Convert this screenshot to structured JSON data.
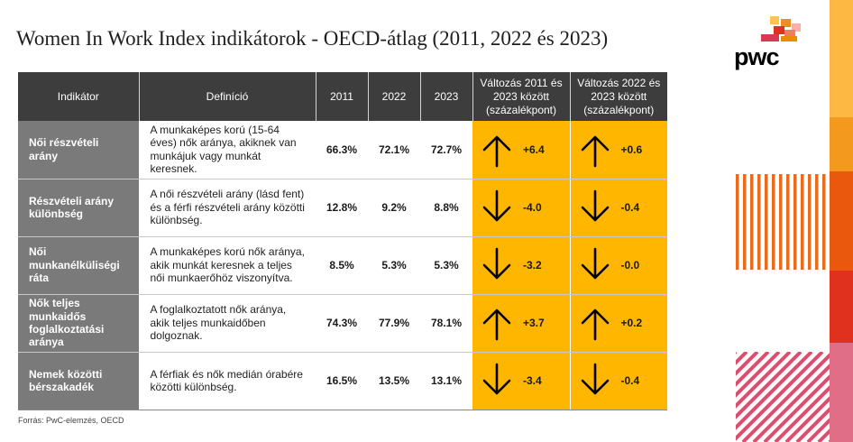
{
  "title": "Women In Work Index indikátorok - OECD-átlag (2011, 2022 és 2023)",
  "logo": {
    "text": "pwc"
  },
  "colors": {
    "accent": "#ffb600",
    "header": "#3d3d3d",
    "indicator": "#7a7a7a"
  },
  "table": {
    "headers": {
      "indicator": "Indikátor",
      "definition": "Definíció",
      "y2011": "2011",
      "y2022": "2022",
      "y2023": "2023",
      "change_2011_2023": "Változás 2011 és 2023 között (százalékpont)",
      "change_2022_2023": "Változás 2022 és 2023 között (százalékpont)"
    },
    "rows": [
      {
        "indicator": "Női részvételi arány",
        "definition": "A munkaképes korú (15-64 éves) nők aránya, akiknek van munkájuk vagy munkát keresnek.",
        "y2011": "66.3%",
        "y2022": "72.1%",
        "y2023": "72.7%",
        "change_a": "+6.4",
        "dir_a": "up-arrow-icon",
        "change_b": "+0.6",
        "dir_b": "up-arrow-icon"
      },
      {
        "indicator": "Részvételi arány különbség",
        "definition": "A női részvételi arány (lásd fent) és a férfi részvételi arány közötti különbség.",
        "y2011": "12.8%",
        "y2022": "9.2%",
        "y2023": "8.8%",
        "change_a": "-4.0",
        "dir_a": "down-arrow-icon",
        "change_b": "-0.4",
        "dir_b": "down-arrow-icon"
      },
      {
        "indicator": "Női munkanélküliségi ráta",
        "definition": "A munkaképes korú nők aránya, akik munkát keresnek a teljes női munkaerőhöz viszonyítva.",
        "y2011": "8.5%",
        "y2022": "5.3%",
        "y2023": "5.3%",
        "change_a": "-3.2",
        "dir_a": "down-arrow-icon",
        "change_b": "-0.0",
        "dir_b": "down-arrow-icon"
      },
      {
        "indicator": "Nők teljes munkaidős foglalkoztatási aránya",
        "definition": "A foglalkoztatott nők aránya, akik teljes munkaidőben dolgoznak.",
        "y2011": "74.3%",
        "y2022": "77.9%",
        "y2023": "78.1%",
        "change_a": "+3.7",
        "dir_a": "up-arrow-icon",
        "change_b": "+0.2",
        "dir_b": "up-arrow-icon"
      },
      {
        "indicator": "Nemek közötti bérszakadék",
        "definition": "A férfiak és nők medián órabére közötti különbség.",
        "y2011": "16.5%",
        "y2022": "13.5%",
        "y2023": "13.1%",
        "change_a": "-3.4",
        "dir_a": "down-arrow-icon",
        "change_b": "-0.4",
        "dir_b": "down-arrow-icon"
      }
    ]
  },
  "source": "Forrás: PwC-elemzés, OECD"
}
